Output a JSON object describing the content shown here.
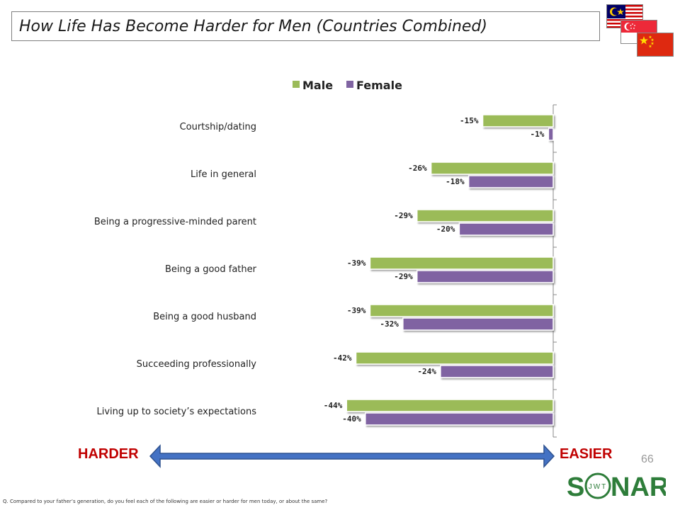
{
  "header": {
    "title": "How Life Has Become Harder for Men (Countries Combined)"
  },
  "flags": [
    "malaysia-flag",
    "singapore-flag",
    "china-flag"
  ],
  "chart_data": {
    "type": "bar",
    "orientation": "horizontal",
    "categories": [
      "Courtship/dating",
      "Life in general",
      "Being a progressive-minded parent",
      "Being a good father",
      "Being a good husband",
      "Succeeding professionally",
      "Living up to society’s expectations"
    ],
    "series": [
      {
        "name": "Male",
        "color": "#9bbb59",
        "values": [
          -15,
          -26,
          -29,
          -39,
          -39,
          -42,
          -44
        ],
        "labels": [
          "-15%",
          "-26%",
          "-29%",
          "-39%",
          "-39%",
          "-42%",
          "-44%"
        ]
      },
      {
        "name": "Female",
        "color": "#8064a2",
        "values": [
          -1,
          -18,
          -20,
          -29,
          -32,
          -24,
          -40
        ],
        "labels": [
          "-1%",
          "-18%",
          "-20%",
          "-29%",
          "-32%",
          "-24%",
          "-40%"
        ]
      }
    ],
    "xlim": [
      -50,
      0
    ],
    "legend_position": "top",
    "grid": false
  },
  "arrow": {
    "left_label": "HARDER",
    "right_label": "EASIER",
    "color": "#4472c4"
  },
  "page_number": "66",
  "footnote": "Q. Compared to your father’s generation, do you feel each of the following are easier or harder for men today, or about the same?",
  "logo": {
    "text_left": "S",
    "text_right": "NAR",
    "ring_letters": "JWT",
    "color": "#2e7d3a"
  }
}
